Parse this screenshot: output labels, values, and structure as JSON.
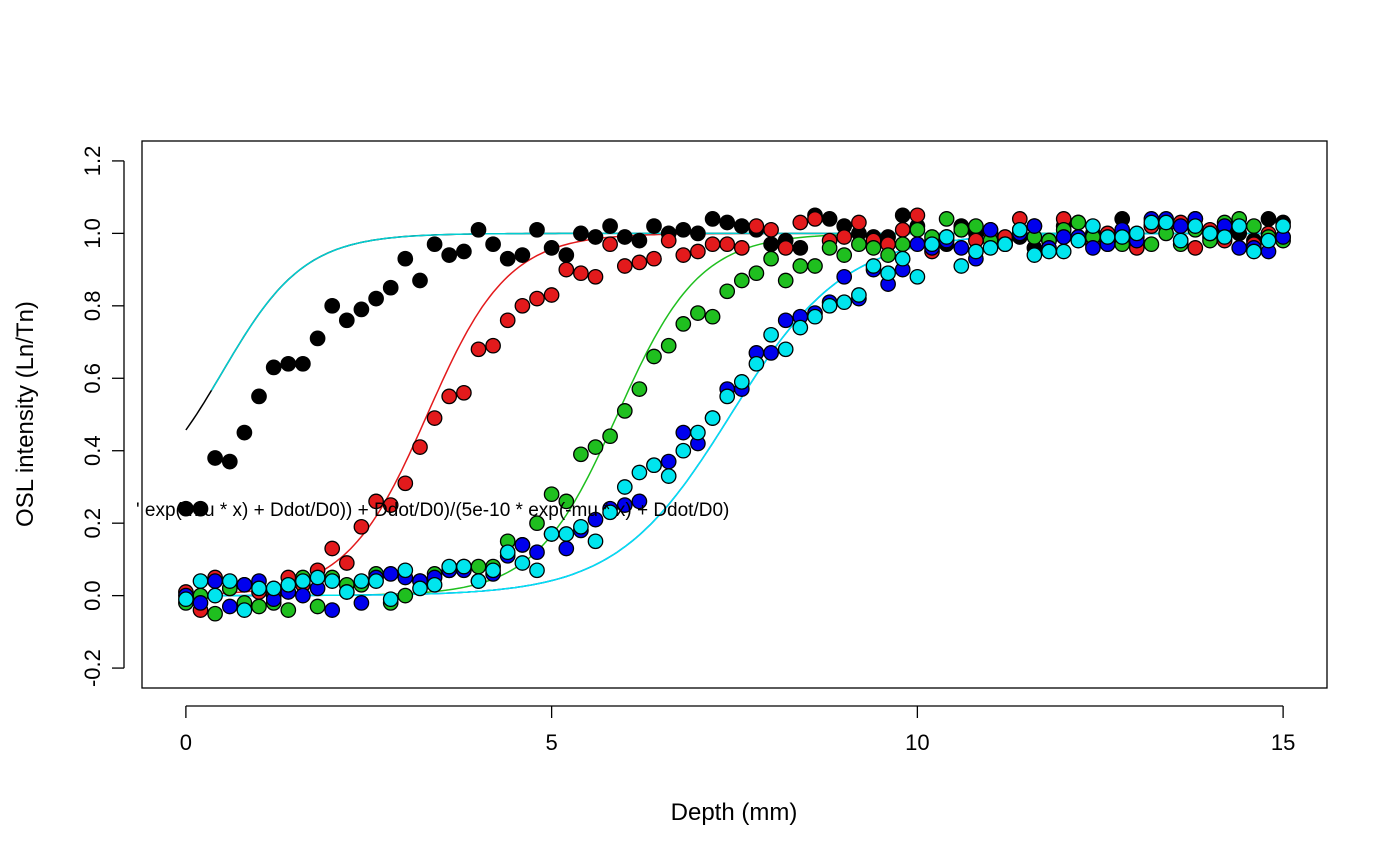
{
  "chart_data": {
    "type": "scatter",
    "xlabel": "Depth (mm)",
    "ylabel": "OSL intensity (Ln/Tn)",
    "xlim": [
      -0.6,
      15.6
    ],
    "ylim": [
      -0.255,
      1.255
    ],
    "xticks": [
      0,
      5,
      10,
      15
    ],
    "xtick_labels": [
      "0",
      "5",
      "10",
      "15"
    ],
    "yticks": [
      -0.2,
      0.0,
      0.2,
      0.4,
      0.6,
      0.8,
      1.0,
      1.2
    ],
    "ytick_labels": [
      "-0.2",
      "0.0",
      "0.2",
      "0.4",
      "0.6",
      "0.8",
      "1.0",
      "1.2"
    ],
    "annotation": "' exp(-mu * x) + Ddot/D0)) + Ddot/D0)/(5e-10 * exp(-mu * x) + Ddot/D0)",
    "grid": false,
    "legend": "none",
    "x": [
      0.0,
      0.2,
      0.4,
      0.6,
      0.8,
      1.0,
      1.2,
      1.4,
      1.6,
      1.8,
      2.0,
      2.2,
      2.4,
      2.6,
      2.8,
      3.0,
      3.2,
      3.4,
      3.6,
      3.8,
      4.0,
      4.2,
      4.4,
      4.6,
      4.8,
      5.0,
      5.2,
      5.4,
      5.6,
      5.8,
      6.0,
      6.2,
      6.4,
      6.6,
      6.8,
      7.0,
      7.2,
      7.4,
      7.6,
      7.8,
      8.0,
      8.2,
      8.4,
      8.6,
      8.8,
      9.0,
      9.2,
      9.4,
      9.6,
      9.8,
      10.0,
      10.2,
      10.4,
      10.6,
      10.8,
      11.0,
      11.2,
      11.4,
      11.6,
      11.8,
      12.0,
      12.2,
      12.4,
      12.6,
      12.8,
      13.0,
      13.2,
      13.4,
      13.6,
      13.8,
      14.0,
      14.2,
      14.4,
      14.6,
      14.8,
      15.0
    ],
    "series": [
      {
        "color": "#000000",
        "curve": {
          "offset": 0.235,
          "midpoint": 0.5,
          "width": 0.56
        },
        "values": [
          0.24,
          0.24,
          0.38,
          0.37,
          0.45,
          0.55,
          0.63,
          0.64,
          0.64,
          0.71,
          0.8,
          0.76,
          0.79,
          0.82,
          0.85,
          0.93,
          0.87,
          0.97,
          0.94,
          0.95,
          1.01,
          0.97,
          0.93,
          0.94,
          1.01,
          0.96,
          0.94,
          1.0,
          0.99,
          1.02,
          0.99,
          0.98,
          1.02,
          1.0,
          1.01,
          1.0,
          1.04,
          1.03,
          1.02,
          1.01,
          0.97,
          0.98,
          0.96,
          1.05,
          1.04,
          1.02,
          1.0,
          0.99,
          0.99,
          1.05,
          1.02,
          0.98,
          0.97,
          1.02,
          1.0,
          1.01,
          0.98,
          0.99,
          0.96,
          0.98,
          1.02,
          0.99,
          1.0,
          0.97,
          1.04,
          0.99,
          1.02,
          1.03,
          0.98,
          1.04,
          0.99,
          1.01,
          1.0,
          0.98,
          1.04,
          1.03
        ]
      },
      {
        "color": "#e31a1c",
        "curve": {
          "offset": 0.0,
          "midpoint": 3.3,
          "width": 0.55
        },
        "values": [
          0.01,
          -0.04,
          0.05,
          0.02,
          0.03,
          0.01,
          0.0,
          0.05,
          0.03,
          0.07,
          0.13,
          0.09,
          0.19,
          0.26,
          0.25,
          0.31,
          0.41,
          0.49,
          0.55,
          0.56,
          0.68,
          0.69,
          0.76,
          0.8,
          0.82,
          0.83,
          0.9,
          0.89,
          0.88,
          0.97,
          0.91,
          0.92,
          0.93,
          0.98,
          0.94,
          0.95,
          0.97,
          0.97,
          0.96,
          1.02,
          1.01,
          0.96,
          1.03,
          1.04,
          0.98,
          0.99,
          1.03,
          0.98,
          0.97,
          1.01,
          1.05,
          0.95,
          0.99,
          1.01,
          0.98,
          1.0,
          0.99,
          1.04,
          1.02,
          0.98,
          1.04,
          1.03,
          0.97,
          1.0,
          0.98,
          0.96,
          1.02,
          1.02,
          1.03,
          0.96,
          1.01,
          0.98,
          1.02,
          0.97,
          1.0,
          0.99
        ]
      },
      {
        "color": "#1fbf1f",
        "curve": {
          "offset": 0.0,
          "midpoint": 5.9,
          "width": 0.56
        },
        "values": [
          -0.02,
          0.0,
          -0.05,
          0.02,
          -0.02,
          -0.03,
          -0.02,
          -0.04,
          0.05,
          -0.03,
          0.05,
          0.03,
          0.03,
          0.06,
          -0.02,
          0.0,
          0.04,
          0.06,
          0.07,
          0.08,
          0.08,
          0.08,
          0.15,
          0.14,
          0.2,
          0.28,
          0.26,
          0.39,
          0.41,
          0.44,
          0.51,
          0.57,
          0.66,
          0.69,
          0.75,
          0.78,
          0.77,
          0.84,
          0.87,
          0.89,
          0.93,
          0.87,
          0.91,
          0.91,
          0.96,
          0.94,
          0.97,
          0.96,
          0.94,
          0.97,
          1.01,
          0.99,
          1.04,
          1.01,
          1.02,
          0.98,
          0.97,
          1.01,
          0.99,
          0.98,
          1.01,
          1.03,
          0.99,
          0.98,
          0.97,
          0.99,
          0.97,
          1.0,
          0.97,
          1.01,
          0.98,
          1.03,
          1.04,
          1.02,
          0.99,
          0.98
        ]
      },
      {
        "color": "#0000ee",
        "curve": {
          "offset": 0.0,
          "midpoint": 7.45,
          "width": 0.78
        },
        "values": [
          0.0,
          -0.02,
          0.04,
          -0.03,
          0.03,
          0.04,
          -0.01,
          0.01,
          0.0,
          0.02,
          -0.04,
          0.01,
          -0.02,
          0.05,
          0.06,
          0.05,
          0.04,
          0.05,
          0.07,
          0.07,
          0.04,
          0.06,
          0.11,
          0.14,
          0.12,
          0.17,
          0.13,
          0.18,
          0.21,
          0.24,
          0.25,
          0.26,
          0.36,
          0.37,
          0.45,
          0.42,
          0.49,
          0.57,
          0.57,
          0.67,
          0.67,
          0.76,
          0.77,
          0.78,
          0.81,
          0.88,
          0.82,
          0.9,
          0.86,
          0.9,
          0.97,
          0.96,
          0.98,
          0.96,
          0.93,
          1.01,
          0.97,
          1.0,
          1.02,
          0.96,
          0.99,
          0.99,
          0.96,
          0.97,
          1.01,
          0.98,
          1.04,
          1.04,
          1.02,
          1.04,
          1.0,
          1.02,
          0.96,
          0.96,
          0.95,
          0.99
        ]
      },
      {
        "color": "#00e5ee",
        "curve": {
          "offset": 0.0,
          "midpoint": 7.45,
          "width": 0.78
        },
        "values": [
          -0.01,
          0.04,
          0.0,
          0.04,
          -0.04,
          0.02,
          0.02,
          0.03,
          0.04,
          0.05,
          0.04,
          0.01,
          0.04,
          0.04,
          -0.01,
          0.07,
          0.02,
          0.03,
          0.08,
          0.08,
          0.04,
          0.07,
          0.12,
          0.09,
          0.07,
          0.17,
          0.17,
          0.19,
          0.15,
          0.23,
          0.3,
          0.34,
          0.36,
          0.33,
          0.4,
          0.45,
          0.49,
          0.55,
          0.59,
          0.64,
          0.72,
          0.68,
          0.74,
          0.77,
          0.8,
          0.81,
          0.83,
          0.91,
          0.89,
          0.93,
          0.88,
          0.97,
          0.99,
          0.91,
          0.95,
          0.96,
          0.97,
          1.01,
          0.94,
          0.95,
          0.95,
          0.98,
          1.02,
          0.99,
          0.99,
          1.0,
          1.03,
          1.03,
          0.98,
          1.02,
          1.0,
          0.99,
          1.02,
          0.95,
          0.98,
          1.02
        ]
      }
    ],
    "fit_overlay": {
      "color": "#00ced1",
      "midpoint": 0.5,
      "width": 0.56,
      "start_y": 0.235,
      "x_from": 0.35
    }
  }
}
